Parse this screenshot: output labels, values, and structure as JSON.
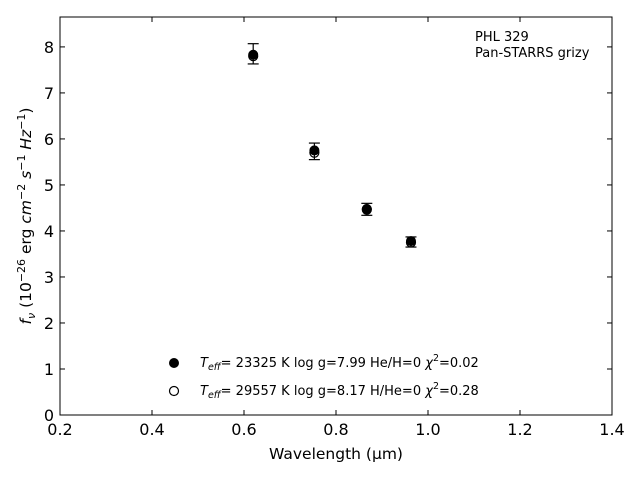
{
  "chart_data": {
    "type": "scatter",
    "xlabel": "Wavelength (μm)",
    "ylabel_parts": {
      "f": "f",
      "sub": "ν",
      "rest1": " (10",
      "exp1": "−26",
      "erg": " erg ",
      "cm": "cm",
      "exp2": "−2",
      "s": " s",
      "exp3": "−1",
      "hz": " Hz",
      "exp4": "−1",
      "close": ")"
    },
    "xlim": [
      0.2,
      1.4
    ],
    "ylim": [
      0,
      8.65
    ],
    "xticks": [
      "0.2",
      "0.4",
      "0.6",
      "0.8",
      "1.0",
      "1.2",
      "1.4"
    ],
    "xtick_values": [
      0.2,
      0.4,
      0.6,
      0.8,
      1.0,
      1.2,
      1.4
    ],
    "yticks": [
      "0",
      "1",
      "2",
      "3",
      "4",
      "5",
      "6",
      "7",
      "8"
    ],
    "ytick_values": [
      0,
      1,
      2,
      3,
      4,
      5,
      6,
      7,
      8
    ],
    "annotation": [
      "PHL 329",
      "Pan-STARRS grizy"
    ],
    "observed": {
      "x": [
        0.62,
        0.753,
        0.867,
        0.963
      ],
      "y": [
        7.85,
        5.73,
        4.47,
        3.76
      ],
      "yerr": [
        0.22,
        0.18,
        0.13,
        0.11
      ]
    },
    "series": [
      {
        "marker": "filled-circle",
        "x": [
          0.62,
          0.753,
          0.867,
          0.963
        ],
        "y": [
          7.83,
          5.75,
          4.48,
          3.78
        ],
        "label": {
          "t": "T",
          "sub": "eff",
          "mid": "= 23325 K  log g=7.99  He/H=0  ",
          "chi": "χ",
          "sup": "2",
          "end": "=0.02"
        }
      },
      {
        "marker": "open-circle",
        "x": [
          0.62,
          0.753,
          0.867,
          0.963
        ],
        "y": [
          7.8,
          5.7,
          4.46,
          3.75
        ],
        "label": {
          "t": "T",
          "sub": "eff",
          "mid": "= 29557 K  log g=8.17  H/He=0  ",
          "chi": "χ",
          "sup": "2",
          "end": "=0.28"
        }
      }
    ]
  }
}
